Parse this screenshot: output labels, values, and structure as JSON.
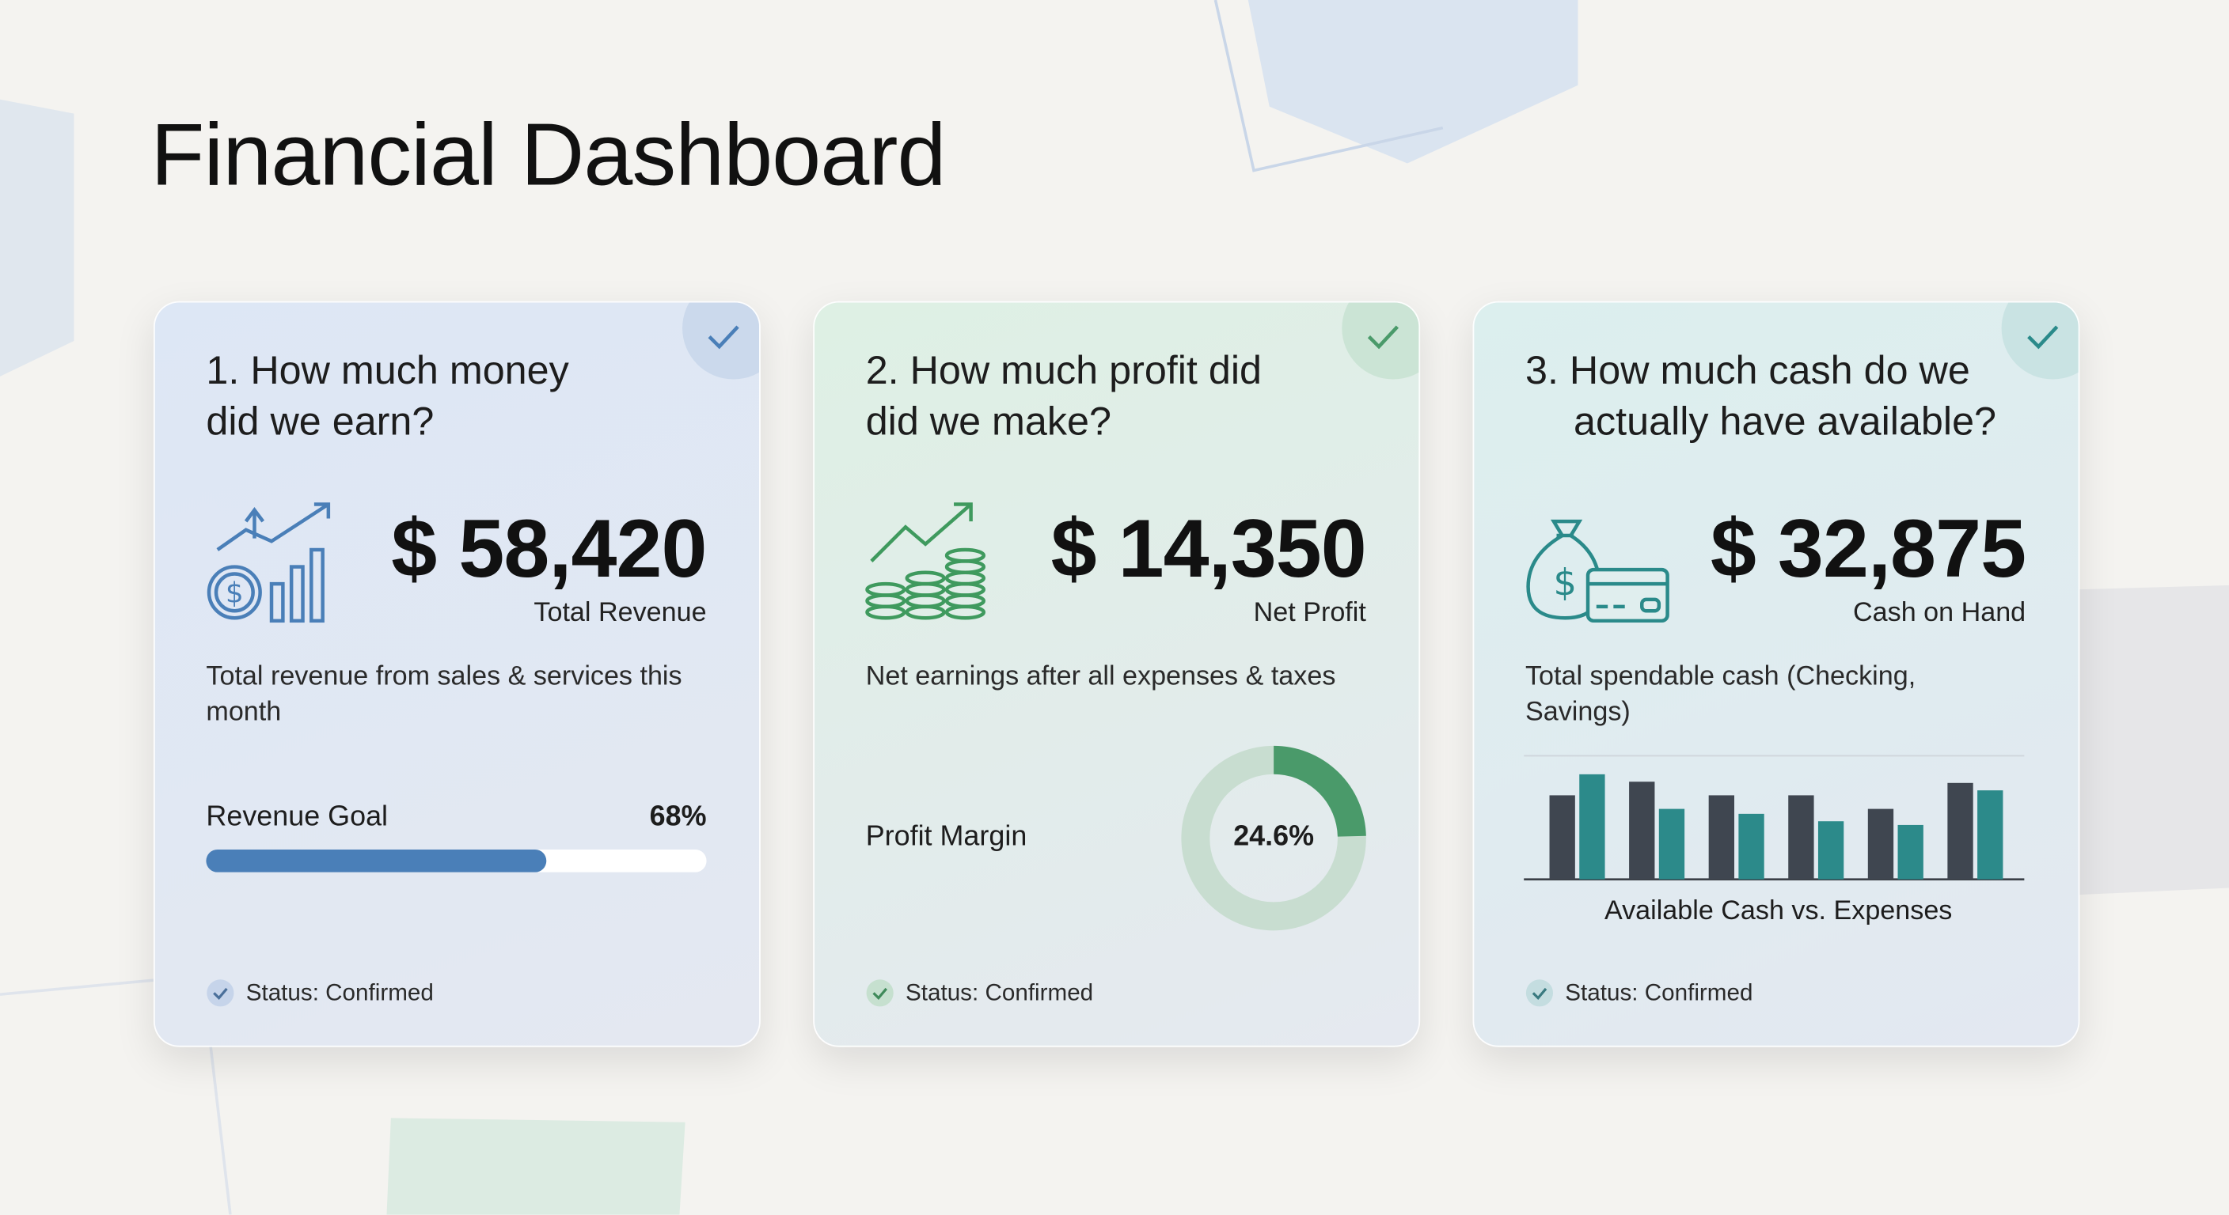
{
  "header": {
    "title": "Financial Dashboard"
  },
  "cards": [
    {
      "question": [
        "1. How much money",
        "did we earn?"
      ],
      "amount": "$ 58,420",
      "amount_label": "Total Revenue",
      "description": "Total revenue from sales & services this month",
      "progress": {
        "label": "Revenue Goal",
        "value": 68,
        "value_label": "68%",
        "xlim": [
          0,
          100
        ],
        "color": "#4a7fb8"
      },
      "status": "Status: Confirmed"
    },
    {
      "question": [
        "2. How much profit did",
        "did we make?"
      ],
      "amount": "$ 14,350",
      "amount_label": "Net Profit",
      "description": "Net earnings after all expenses & taxes",
      "donut": {
        "label": "Profit Margin",
        "value": 24.6,
        "value_label": "24.6%",
        "xlim": [
          0,
          100
        ],
        "color": "#4a9a6a",
        "track_color": "#c8ddd0"
      },
      "status": "Status: Confirmed"
    },
    {
      "question": [
        "3. How much cash do we",
        "actually have available?"
      ],
      "amount": "$ 32,875",
      "amount_label": "Cash on Hand",
      "description": "Total spendable cash (Checking, Savings)",
      "chart_data": {
        "type": "bar",
        "title": "Available Cash vs. Expenses",
        "ylim": [
          0,
          100
        ],
        "series": [
          {
            "color": "#3f4650",
            "values": [
              68,
              79,
              68,
              68,
              57,
              78
            ]
          },
          {
            "color": "#2c8a8a",
            "values": [
              85,
              57,
              53,
              47,
              44,
              72
            ]
          }
        ]
      },
      "status": "Status: Confirmed"
    }
  ]
}
